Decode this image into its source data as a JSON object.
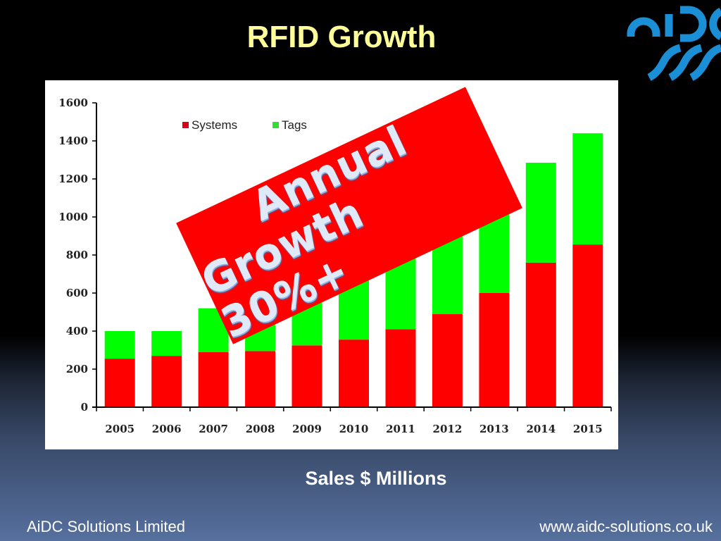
{
  "slide": {
    "title": "RFID Growth",
    "caption": "Sales  $ Millions",
    "footer_left": "AiDC Solutions Limited",
    "footer_right": "www.aidc-solutions.co.uk",
    "logo": {
      "name": "aidc-logo",
      "text": "aidc",
      "color": "#1a8fd6"
    }
  },
  "banner": {
    "line1": "Annual",
    "line2": "Growth 30%+",
    "background": "#ff0000"
  },
  "colors": {
    "systems": "#ff0000",
    "tags": "#00ff00",
    "title": "#ffff99"
  },
  "chart_data": {
    "type": "bar",
    "stacked": true,
    "title": "RFID Growth",
    "xlabel": "",
    "ylabel": "Sales $ Millions",
    "categories": [
      "2005",
      "2006",
      "2007",
      "2008",
      "2009",
      "2010",
      "2011",
      "2012",
      "2013",
      "2014",
      "2015"
    ],
    "series": [
      {
        "name": "Systems",
        "color": "#ff0000",
        "values": [
          255,
          270,
          290,
          295,
          325,
          355,
          410,
          490,
          600,
          760,
          855
        ]
      },
      {
        "name": "Tags",
        "color": "#00ff00",
        "values": [
          145,
          130,
          230,
          265,
          295,
          385,
          440,
          490,
          520,
          525,
          585
        ]
      }
    ],
    "totals": [
      400,
      400,
      520,
      560,
      620,
      740,
      850,
      980,
      1120,
      1285,
      1440
    ],
    "yticks": [
      0,
      200,
      400,
      600,
      800,
      1000,
      1200,
      1400,
      1600
    ],
    "ylim": [
      0,
      1600
    ],
    "grid": false,
    "legend": {
      "position": "top-left-inside",
      "entries": [
        "Systems",
        "Tags"
      ]
    },
    "annotations": [
      "Annual Growth 30%+"
    ]
  }
}
